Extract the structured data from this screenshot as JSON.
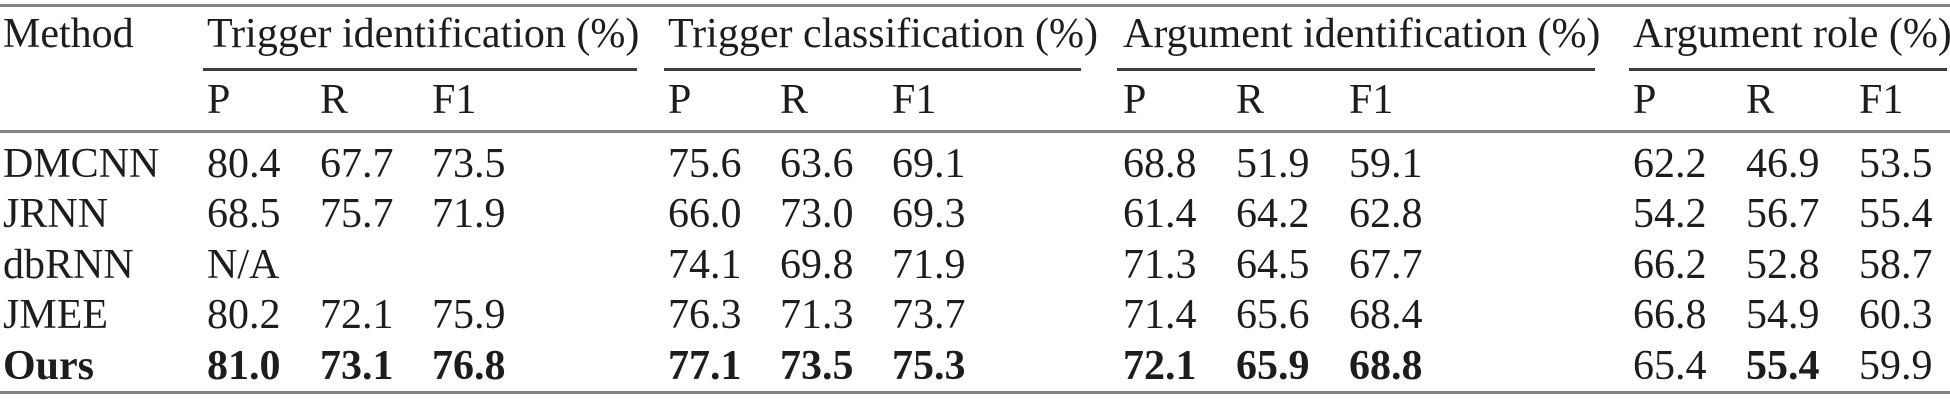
{
  "table": {
    "method_header": "Method",
    "groups": [
      {
        "label": "Trigger identification (%)"
      },
      {
        "label": "Trigger classification (%)"
      },
      {
        "label": "Argument identification (%)"
      },
      {
        "label": "Argument role (%)"
      }
    ],
    "subheaders": [
      "P",
      "R",
      "F1"
    ],
    "rows": [
      {
        "method": "DMCNN",
        "bold": false,
        "cells": [
          {
            "v": "80.4"
          },
          {
            "v": "67.7"
          },
          {
            "v": "73.5"
          },
          {
            "v": "75.6"
          },
          {
            "v": "63.6"
          },
          {
            "v": "69.1"
          },
          {
            "v": "68.8"
          },
          {
            "v": "51.9"
          },
          {
            "v": "59.1"
          },
          {
            "v": "62.2"
          },
          {
            "v": "46.9"
          },
          {
            "v": "53.5"
          }
        ]
      },
      {
        "method": "JRNN",
        "bold": false,
        "cells": [
          {
            "v": "68.5"
          },
          {
            "v": "75.7"
          },
          {
            "v": "71.9"
          },
          {
            "v": "66.0"
          },
          {
            "v": "73.0"
          },
          {
            "v": "69.3"
          },
          {
            "v": "61.4"
          },
          {
            "v": "64.2"
          },
          {
            "v": "62.8"
          },
          {
            "v": "54.2"
          },
          {
            "v": "56.7"
          },
          {
            "v": "55.4"
          }
        ]
      },
      {
        "method": "dbRNN",
        "bold": false,
        "cells": [
          {
            "v": "N/A"
          },
          {
            "v": ""
          },
          {
            "v": ""
          },
          {
            "v": "74.1"
          },
          {
            "v": "69.8"
          },
          {
            "v": "71.9"
          },
          {
            "v": "71.3"
          },
          {
            "v": "64.5"
          },
          {
            "v": "67.7"
          },
          {
            "v": "66.2"
          },
          {
            "v": "52.8"
          },
          {
            "v": "58.7"
          }
        ]
      },
      {
        "method": "JMEE",
        "bold": false,
        "cells": [
          {
            "v": "80.2"
          },
          {
            "v": "72.1"
          },
          {
            "v": "75.9"
          },
          {
            "v": "76.3"
          },
          {
            "v": "71.3"
          },
          {
            "v": "73.7"
          },
          {
            "v": "71.4"
          },
          {
            "v": "65.6"
          },
          {
            "v": "68.4"
          },
          {
            "v": "66.8"
          },
          {
            "v": "54.9"
          },
          {
            "v": "60.3"
          }
        ]
      },
      {
        "method": "Ours",
        "bold": true,
        "cells": [
          {
            "v": "81.0",
            "b": true
          },
          {
            "v": "73.1",
            "b": true
          },
          {
            "v": "76.8",
            "b": true
          },
          {
            "v": "77.1",
            "b": true
          },
          {
            "v": "73.5",
            "b": true
          },
          {
            "v": "75.3",
            "b": true
          },
          {
            "v": "72.1",
            "b": true
          },
          {
            "v": "65.9",
            "b": true
          },
          {
            "v": "68.8",
            "b": true
          },
          {
            "v": "65.4"
          },
          {
            "v": "55.4",
            "b": true
          },
          {
            "v": "59.9"
          }
        ]
      }
    ]
  }
}
